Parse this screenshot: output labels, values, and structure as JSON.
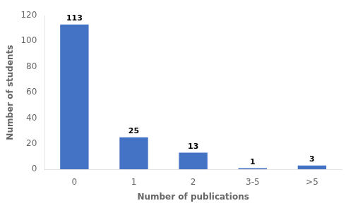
{
  "chart_data": {
    "type": "bar",
    "categories": [
      "0",
      "1",
      "2",
      "3-5",
      ">5"
    ],
    "values": [
      113,
      25,
      13,
      1,
      3
    ],
    "color": "#4472C4",
    "xlabel": "Number of publications",
    "ylabel": "Number of students",
    "ylim": [
      0,
      120
    ],
    "yticks": [
      0,
      20,
      40,
      60,
      80,
      100,
      120
    ],
    "grid": false,
    "data_labels": true
  }
}
